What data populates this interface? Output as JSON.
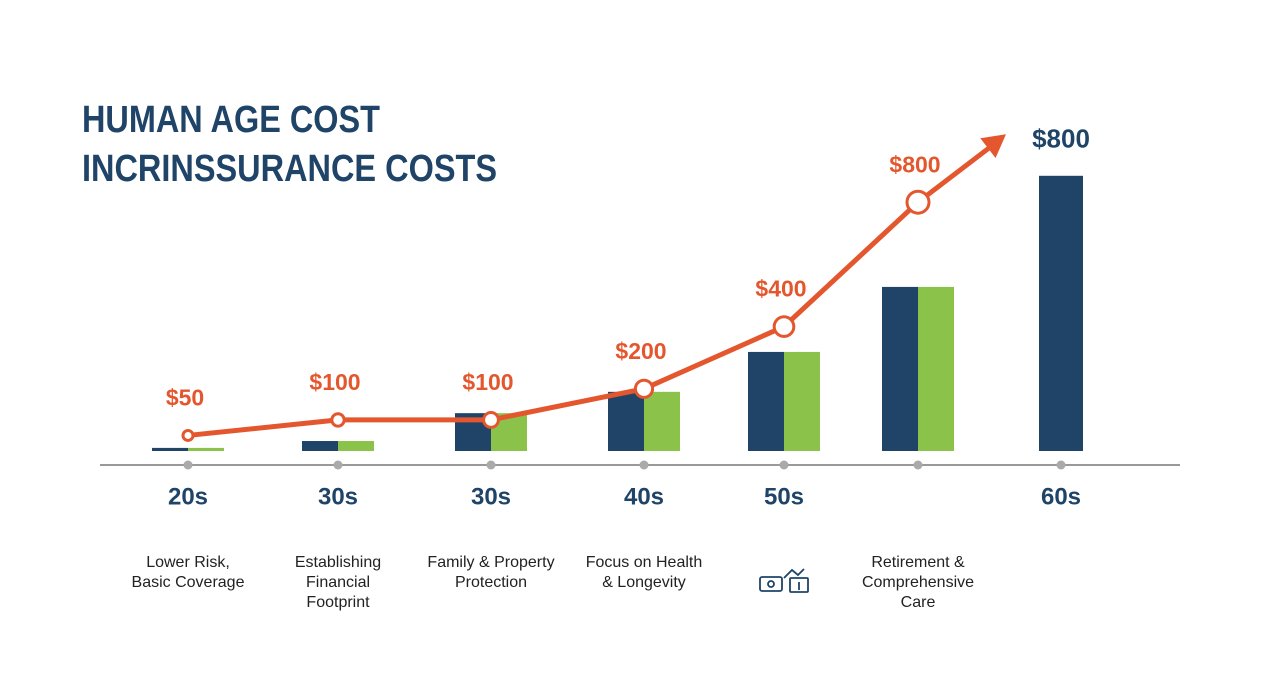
{
  "chart_data": {
    "type": "bar",
    "title_lines": [
      "HUMAN AGE COST",
      "INCRINSSURANCE COSTS"
    ],
    "categories": [
      "20s",
      "30s",
      "30s",
      "40s",
      "50s",
      null,
      "60s"
    ],
    "descriptions": [
      [
        "Lower Risk,",
        "Basic Coverage"
      ],
      [
        "Establishing",
        "Financial",
        "Footprint"
      ],
      [
        "Family & Property",
        "Protection"
      ],
      [
        "Focus on Health",
        "& Longevity"
      ],
      null,
      [
        "Retirement &",
        "Comprehensive",
        "Care"
      ],
      null
    ],
    "ylim": [
      0,
      1000
    ],
    "y2lim": [
      0,
      1000
    ],
    "series": [
      {
        "type": "bar",
        "color": "#1f4468",
        "values": [
          9,
          29,
          110,
          172,
          288,
          477,
          800
        ],
        "value_labels": [
          null,
          null,
          null,
          null,
          null,
          null,
          "$800"
        ]
      },
      {
        "type": "bar",
        "color": "#8bc34a",
        "values": [
          9,
          29,
          110,
          172,
          288,
          477,
          null
        ]
      },
      {
        "type": "line",
        "axis": "y2",
        "color": "#e4572e",
        "values": [
          50,
          100,
          100,
          200,
          400,
          800,
          null
        ],
        "value_labels": [
          "$50",
          "$100",
          "$100",
          "$200",
          "$400",
          "$800",
          null
        ]
      }
    ]
  }
}
